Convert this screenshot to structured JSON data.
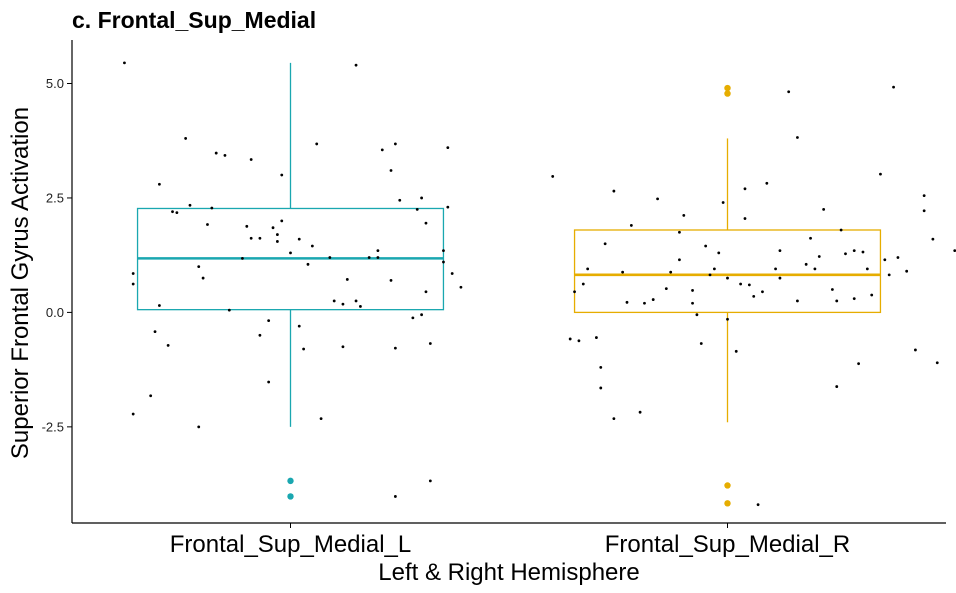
{
  "chart_data": {
    "type": "box",
    "title": "c.  Frontal_Sup_Medial",
    "xlabel": "Left & Right Hemisphere",
    "ylabel": "Superior Frontal Gyrus Activation",
    "categories": [
      "Frontal_Sup_Medial_L",
      "Frontal_Sup_Medial_R"
    ],
    "yticks": [
      -2.5,
      0,
      2.5,
      5
    ],
    "ytick_labels": [
      "-2.5",
      "0.0",
      "2.5",
      "5.0"
    ],
    "ylim": [
      -4.6,
      5.95
    ],
    "grid": false,
    "legend": "none",
    "colors": {
      "left": "#1aa7b0",
      "right": "#e6ad00",
      "jitter": "#000000",
      "axis": "#000000"
    },
    "boxes": [
      {
        "category": "Frontal_Sup_Medial_L",
        "q1": 0.06,
        "median": 1.18,
        "q3": 2.27,
        "whisker_low": -2.5,
        "whisker_high": 5.45,
        "outliers": [
          -3.68,
          -4.02
        ]
      },
      {
        "category": "Frontal_Sup_Medial_R",
        "q1": 0.0,
        "median": 0.82,
        "q3": 1.8,
        "whisker_low": -2.4,
        "whisker_high": 3.8,
        "outliers": [
          4.9,
          4.78,
          -3.78,
          -4.17
        ]
      }
    ],
    "jitter_points": [
      [
        [
          -0.38,
          5.45
        ],
        [
          -0.36,
          0.85
        ],
        [
          -0.36,
          0.62
        ],
        [
          -0.36,
          -2.22
        ],
        [
          -0.32,
          -1.82
        ],
        [
          -0.31,
          -0.42
        ],
        [
          -0.3,
          0.15
        ],
        [
          -0.3,
          2.8
        ],
        [
          -0.28,
          -0.72
        ],
        [
          -0.27,
          2.2
        ],
        [
          -0.26,
          2.18
        ],
        [
          -0.24,
          3.8
        ],
        [
          -0.23,
          2.34
        ],
        [
          -0.21,
          1.0
        ],
        [
          -0.21,
          -2.5
        ],
        [
          -0.2,
          0.75
        ],
        [
          -0.19,
          1.92
        ],
        [
          -0.18,
          2.28
        ],
        [
          -0.17,
          3.48
        ],
        [
          -0.15,
          3.43
        ],
        [
          -0.14,
          0.05
        ],
        [
          -0.11,
          1.18
        ],
        [
          -0.1,
          1.88
        ],
        [
          -0.09,
          1.62
        ],
        [
          -0.09,
          3.34
        ],
        [
          -0.07,
          -0.5
        ],
        [
          -0.07,
          1.62
        ],
        [
          -0.05,
          -0.18
        ],
        [
          -0.05,
          -1.52
        ],
        [
          -0.04,
          1.85
        ],
        [
          -0.03,
          1.7
        ],
        [
          -0.03,
          1.55
        ],
        [
          -0.02,
          2.0
        ],
        [
          -0.02,
          3.0
        ],
        [
          0.0,
          1.3
        ],
        [
          0.02,
          -0.3
        ],
        [
          0.02,
          1.6
        ],
        [
          0.03,
          -0.8
        ],
        [
          0.04,
          1.05
        ],
        [
          0.05,
          1.45
        ],
        [
          0.06,
          3.68
        ],
        [
          0.07,
          -2.32
        ],
        [
          0.09,
          1.2
        ],
        [
          0.1,
          0.25
        ],
        [
          0.12,
          0.18
        ],
        [
          0.12,
          -0.75
        ],
        [
          0.13,
          0.72
        ],
        [
          0.15,
          0.25
        ],
        [
          0.15,
          5.4
        ],
        [
          0.16,
          0.13
        ],
        [
          0.18,
          1.2
        ],
        [
          0.2,
          1.35
        ],
        [
          0.2,
          1.2
        ],
        [
          0.21,
          3.55
        ],
        [
          0.23,
          0.7
        ],
        [
          0.23,
          3.1
        ],
        [
          0.24,
          -4.02
        ],
        [
          0.24,
          -0.78
        ],
        [
          0.24,
          3.68
        ],
        [
          0.25,
          2.45
        ],
        [
          0.28,
          -0.12
        ],
        [
          0.3,
          -0.05
        ],
        [
          0.3,
          2.5
        ],
        [
          0.31,
          1.95
        ],
        [
          0.31,
          0.45
        ],
        [
          0.32,
          -0.68
        ],
        [
          0.32,
          -3.68
        ],
        [
          0.35,
          1.1
        ],
        [
          0.35,
          1.35
        ],
        [
          0.36,
          3.6
        ],
        [
          0.36,
          2.3
        ],
        [
          0.37,
          0.85
        ],
        [
          0.39,
          0.55
        ],
        [
          0.29,
          2.25
        ]
      ],
      [
        [
          -0.4,
          2.97
        ],
        [
          -0.36,
          -0.58
        ],
        [
          -0.34,
          -0.62
        ],
        [
          -0.35,
          0.45
        ],
        [
          -0.33,
          0.62
        ],
        [
          -0.32,
          0.95
        ],
        [
          -0.3,
          -0.55
        ],
        [
          -0.29,
          -1.2
        ],
        [
          -0.29,
          -1.65
        ],
        [
          -0.28,
          1.5
        ],
        [
          -0.26,
          2.65
        ],
        [
          -0.26,
          -2.32
        ],
        [
          -0.24,
          0.88
        ],
        [
          -0.23,
          0.22
        ],
        [
          -0.22,
          1.9
        ],
        [
          -0.2,
          -2.18
        ],
        [
          -0.19,
          0.2
        ],
        [
          -0.17,
          0.28
        ],
        [
          -0.16,
          2.48
        ],
        [
          -0.14,
          0.52
        ],
        [
          -0.13,
          0.88
        ],
        [
          -0.11,
          1.75
        ],
        [
          -0.11,
          1.15
        ],
        [
          -0.1,
          2.12
        ],
        [
          -0.08,
          0.48
        ],
        [
          -0.08,
          0.2
        ],
        [
          -0.07,
          -0.05
        ],
        [
          -0.06,
          -0.68
        ],
        [
          -0.05,
          1.45
        ],
        [
          -0.04,
          0.82
        ],
        [
          -0.03,
          0.95
        ],
        [
          -0.02,
          1.3
        ],
        [
          -0.01,
          2.4
        ],
        [
          0.0,
          0.75
        ],
        [
          0.0,
          -0.15
        ],
        [
          0.02,
          -0.85
        ],
        [
          0.03,
          0.62
        ],
        [
          0.04,
          2.05
        ],
        [
          0.04,
          2.7
        ],
        [
          0.05,
          0.6
        ],
        [
          0.06,
          0.35
        ],
        [
          0.07,
          -4.2
        ],
        [
          0.08,
          0.45
        ],
        [
          0.09,
          2.82
        ],
        [
          0.11,
          0.95
        ],
        [
          0.12,
          0.75
        ],
        [
          0.12,
          1.35
        ],
        [
          0.14,
          4.82
        ],
        [
          0.16,
          3.82
        ],
        [
          0.16,
          0.25
        ],
        [
          0.18,
          1.05
        ],
        [
          0.19,
          1.62
        ],
        [
          0.2,
          0.95
        ],
        [
          0.21,
          1.22
        ],
        [
          0.22,
          2.25
        ],
        [
          0.24,
          0.5
        ],
        [
          0.25,
          0.25
        ],
        [
          0.25,
          -1.62
        ],
        [
          0.26,
          1.8
        ],
        [
          0.27,
          1.28
        ],
        [
          0.29,
          0.3
        ],
        [
          0.29,
          1.35
        ],
        [
          0.3,
          -1.12
        ],
        [
          0.31,
          1.32
        ],
        [
          0.32,
          0.95
        ],
        [
          0.33,
          0.38
        ],
        [
          0.35,
          3.02
        ],
        [
          0.36,
          1.15
        ],
        [
          0.37,
          0.82
        ],
        [
          0.39,
          1.2
        ],
        [
          0.41,
          0.9
        ],
        [
          0.43,
          -0.82
        ],
        [
          0.45,
          2.55
        ],
        [
          0.45,
          2.22
        ],
        [
          0.47,
          1.6
        ],
        [
          0.48,
          -1.1
        ],
        [
          0.52,
          1.35
        ],
        [
          0.54,
          -2.4
        ],
        [
          0.55,
          0.05
        ],
        [
          0.56,
          3.08
        ],
        [
          0.57,
          1.18
        ],
        [
          0.58,
          0.6
        ],
        [
          0.59,
          1.32
        ],
        [
          0.6,
          0.6
        ],
        [
          0.62,
          3.05
        ],
        [
          0.62,
          0.38
        ],
        [
          0.63,
          -3.78
        ],
        [
          0.38,
          4.92
        ]
      ]
    ]
  }
}
